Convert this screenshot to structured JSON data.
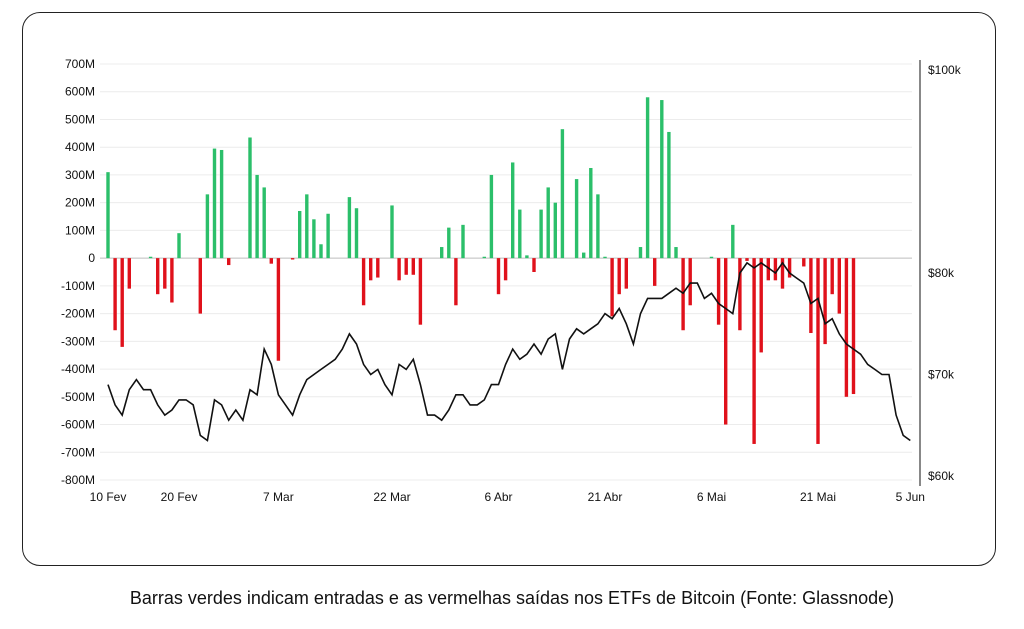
{
  "caption": "Barras verdes indicam entradas e as vermelhas saídas nos ETFs de Bitcoin (Fonte: Glassnode)",
  "colors": {
    "inflow": "#2bbf6a",
    "outflow": "#e0111b",
    "price_line": "#111111",
    "grid": "#ececec",
    "zero": "#bdbdbd"
  },
  "chart_data": {
    "type": "bar",
    "title": "",
    "xlabel": "",
    "ylabel": "",
    "grid": true,
    "x_ticks": [
      "10 Fev",
      "20 Fev",
      "7 Mar",
      "22 Mar",
      "6 Abr",
      "21 Abr",
      "6 Mai",
      "21 Mai",
      "5 Jun"
    ],
    "y_ticks": [
      "700M",
      "600M",
      "500M",
      "400M",
      "300M",
      "200M",
      "100M",
      "0",
      "-100M",
      "-200M",
      "-300M",
      "-400M",
      "-500M",
      "-600M",
      "-700M",
      "-800M"
    ],
    "y2_ticks": [
      "$100k",
      "$80k",
      "$70k",
      "$60k"
    ],
    "ylim": [
      -800,
      700
    ],
    "y2lim": [
      60000,
      100000
    ],
    "series": [
      {
        "type": "bar",
        "unit": "M USD",
        "points": [
          [
            0,
            310
          ],
          [
            1,
            -260
          ],
          [
            2,
            -320
          ],
          [
            3,
            -110
          ],
          [
            6,
            5
          ],
          [
            7,
            -130
          ],
          [
            8,
            -110
          ],
          [
            9,
            -160
          ],
          [
            10,
            90
          ],
          [
            13,
            -200
          ],
          [
            14,
            230
          ],
          [
            15,
            395
          ],
          [
            16,
            390
          ],
          [
            17,
            -25
          ],
          [
            20,
            435
          ],
          [
            21,
            300
          ],
          [
            22,
            255
          ],
          [
            23,
            -20
          ],
          [
            24,
            -370
          ],
          [
            26,
            -5
          ],
          [
            27,
            170
          ],
          [
            28,
            230
          ],
          [
            29,
            140
          ],
          [
            30,
            50
          ],
          [
            31,
            160
          ],
          [
            34,
            220
          ],
          [
            35,
            180
          ],
          [
            36,
            -170
          ],
          [
            37,
            -80
          ],
          [
            38,
            -70
          ],
          [
            40,
            190
          ],
          [
            41,
            -80
          ],
          [
            42,
            -60
          ],
          [
            43,
            -60
          ],
          [
            44,
            -240
          ],
          [
            47,
            40
          ],
          [
            48,
            110
          ],
          [
            49,
            -170
          ],
          [
            50,
            120
          ],
          [
            53,
            5
          ],
          [
            54,
            300
          ],
          [
            55,
            -130
          ],
          [
            56,
            -80
          ],
          [
            57,
            345
          ],
          [
            58,
            175
          ],
          [
            59,
            10
          ],
          [
            60,
            -50
          ],
          [
            61,
            175
          ],
          [
            62,
            255
          ],
          [
            63,
            200
          ],
          [
            64,
            465
          ],
          [
            66,
            285
          ],
          [
            67,
            20
          ],
          [
            68,
            325
          ],
          [
            69,
            230
          ],
          [
            70,
            5
          ],
          [
            71,
            -210
          ],
          [
            72,
            -130
          ],
          [
            73,
            -110
          ],
          [
            75,
            40
          ],
          [
            76,
            580
          ],
          [
            77,
            -100
          ],
          [
            78,
            570
          ],
          [
            79,
            455
          ],
          [
            80,
            40
          ],
          [
            81,
            -260
          ],
          [
            82,
            -170
          ],
          [
            85,
            5
          ],
          [
            86,
            -240
          ],
          [
            87,
            -600
          ],
          [
            88,
            120
          ],
          [
            89,
            -260
          ],
          [
            90,
            -10
          ],
          [
            91,
            -670
          ],
          [
            92,
            -340
          ],
          [
            93,
            -80
          ],
          [
            94,
            -80
          ],
          [
            95,
            -110
          ],
          [
            96,
            -70
          ],
          [
            98,
            -30
          ],
          [
            99,
            -270
          ],
          [
            100,
            -670
          ],
          [
            101,
            -310
          ],
          [
            102,
            -130
          ],
          [
            103,
            -200
          ],
          [
            104,
            -500
          ],
          [
            105,
            -490
          ]
        ]
      },
      {
        "type": "line",
        "unit": "USD",
        "points": [
          [
            0,
            69000
          ],
          [
            1,
            67000
          ],
          [
            2,
            66000
          ],
          [
            3,
            68500
          ],
          [
            4,
            69500
          ],
          [
            5,
            68500
          ],
          [
            6,
            68500
          ],
          [
            7,
            67000
          ],
          [
            8,
            66000
          ],
          [
            9,
            66500
          ],
          [
            10,
            67500
          ],
          [
            11,
            67500
          ],
          [
            12,
            67000
          ],
          [
            13,
            64000
          ],
          [
            14,
            63500
          ],
          [
            15,
            67500
          ],
          [
            16,
            67000
          ],
          [
            17,
            65500
          ],
          [
            18,
            66500
          ],
          [
            19,
            65500
          ],
          [
            20,
            68500
          ],
          [
            21,
            68000
          ],
          [
            22,
            72500
          ],
          [
            23,
            71000
          ],
          [
            24,
            68000
          ],
          [
            25,
            67000
          ],
          [
            26,
            66000
          ],
          [
            27,
            68000
          ],
          [
            28,
            69500
          ],
          [
            29,
            70000
          ],
          [
            30,
            70500
          ],
          [
            31,
            71000
          ],
          [
            32,
            71500
          ],
          [
            33,
            72500
          ],
          [
            34,
            74000
          ],
          [
            35,
            73000
          ],
          [
            36,
            71000
          ],
          [
            37,
            70000
          ],
          [
            38,
            70500
          ],
          [
            39,
            69000
          ],
          [
            40,
            68000
          ],
          [
            41,
            71000
          ],
          [
            42,
            70500
          ],
          [
            43,
            71500
          ],
          [
            44,
            69000
          ],
          [
            45,
            66000
          ],
          [
            46,
            66000
          ],
          [
            47,
            65500
          ],
          [
            48,
            66500
          ],
          [
            49,
            68000
          ],
          [
            50,
            68000
          ],
          [
            51,
            67000
          ],
          [
            52,
            67000
          ],
          [
            53,
            67500
          ],
          [
            54,
            69000
          ],
          [
            55,
            69000
          ],
          [
            56,
            71000
          ],
          [
            57,
            72500
          ],
          [
            58,
            71500
          ],
          [
            59,
            72000
          ],
          [
            60,
            73000
          ],
          [
            61,
            72000
          ],
          [
            62,
            73500
          ],
          [
            63,
            74000
          ],
          [
            64,
            70500
          ],
          [
            65,
            73500
          ],
          [
            66,
            74500
          ],
          [
            67,
            74000
          ],
          [
            68,
            74500
          ],
          [
            69,
            75000
          ],
          [
            70,
            76000
          ],
          [
            71,
            75500
          ],
          [
            72,
            76500
          ],
          [
            73,
            75000
          ],
          [
            74,
            73000
          ],
          [
            75,
            76000
          ],
          [
            76,
            77500
          ],
          [
            77,
            77500
          ],
          [
            78,
            77500
          ],
          [
            79,
            78000
          ],
          [
            80,
            78500
          ],
          [
            81,
            78000
          ],
          [
            82,
            79000
          ],
          [
            83,
            79000
          ],
          [
            84,
            77500
          ],
          [
            85,
            78000
          ],
          [
            86,
            77000
          ],
          [
            87,
            76500
          ],
          [
            88,
            76000
          ],
          [
            89,
            80000
          ],
          [
            90,
            81000
          ],
          [
            91,
            80500
          ],
          [
            92,
            81000
          ],
          [
            93,
            80500
          ],
          [
            94,
            80000
          ],
          [
            95,
            81000
          ],
          [
            96,
            80000
          ],
          [
            97,
            79500
          ],
          [
            98,
            79000
          ],
          [
            99,
            77000
          ],
          [
            100,
            77500
          ],
          [
            101,
            75000
          ],
          [
            102,
            75500
          ],
          [
            103,
            74000
          ],
          [
            104,
            73000
          ],
          [
            105,
            72500
          ],
          [
            106,
            72000
          ],
          [
            107,
            71000
          ],
          [
            108,
            70500
          ],
          [
            109,
            70000
          ],
          [
            110,
            70000
          ],
          [
            111,
            66000
          ],
          [
            112,
            64000
          ],
          [
            113,
            63500
          ]
        ]
      }
    ]
  }
}
